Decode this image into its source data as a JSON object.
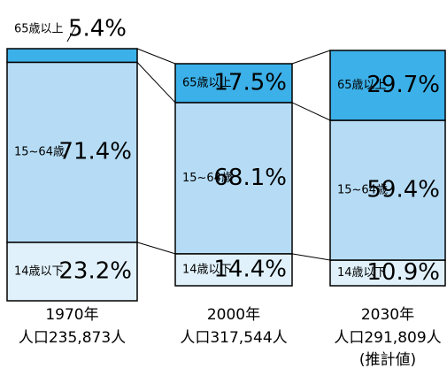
{
  "chart_data": {
    "type": "stacked-bar",
    "categories": [
      "1970年",
      "2000年",
      "2030年"
    ],
    "populations": [
      "人口235,873人",
      "人口317,544人",
      "人口291,809人"
    ],
    "notes": [
      null,
      null,
      "(推計値)"
    ],
    "series": [
      {
        "name": "65歳以上",
        "color": "#3cb0e8",
        "values": [
          5.4,
          17.5,
          29.7
        ],
        "value_labels": [
          "5.4%",
          "17.5%",
          "29.7%"
        ]
      },
      {
        "name": "15~64歳",
        "color": "#b6dcf5",
        "values": [
          71.4,
          68.1,
          59.4
        ],
        "value_labels": [
          "71.4%",
          "68.1%",
          "59.4%"
        ]
      },
      {
        "name": "14歳以下",
        "color": "#e0f1fb",
        "values": [
          23.2,
          14.4,
          10.9
        ],
        "value_labels": [
          "23.2%",
          "14.4%",
          "10.9%"
        ]
      }
    ]
  }
}
